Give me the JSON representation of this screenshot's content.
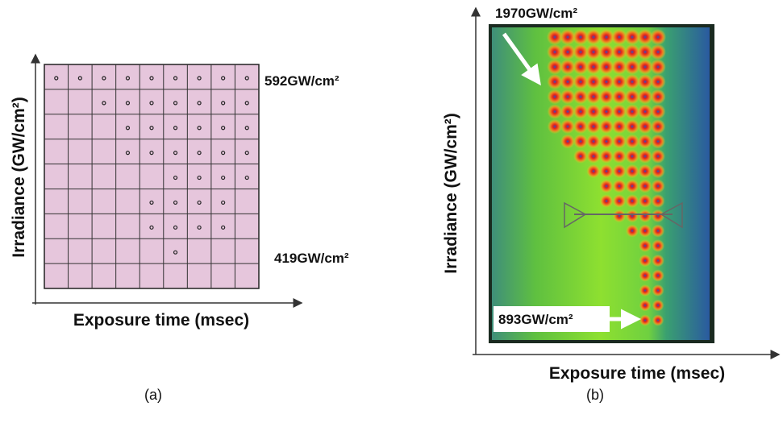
{
  "panels": [
    {
      "caption": "(a)",
      "x_label": "Exposure time (msec)",
      "y_label": "Irradiance (GW/cm²)",
      "top_annotation": "592GW/cm²",
      "bottom_annotation": "419GW/cm²"
    },
    {
      "caption": "(b)",
      "x_label": "Exposure time (msec)",
      "y_label": "Irradiance (GW/cm²)",
      "top_annotation": "1970GW/cm²",
      "bottom_annotation": "893GW/cm²"
    }
  ]
}
